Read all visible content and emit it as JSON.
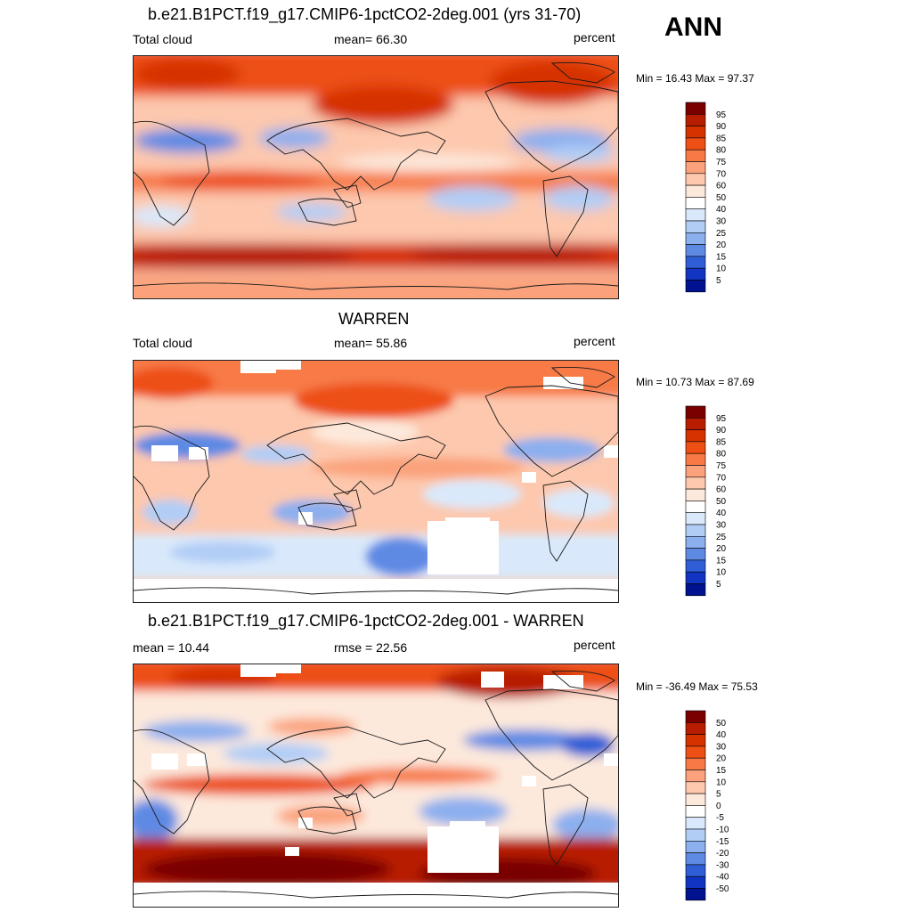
{
  "season": "ANN",
  "panels": [
    {
      "title": "b.e21.B1PCT.f19_g17.CMIP6-1pctCO2-2deg.001 (yrs 31-70)",
      "left_label": "Total cloud",
      "center_label": "mean=  66.30",
      "right_label": "percent",
      "minmax": "Min =  16.43 Max =  97.37",
      "colorbar": {
        "labels": [
          "95",
          "90",
          "85",
          "80",
          "75",
          "70",
          "60",
          "50",
          "40",
          "30",
          "25",
          "20",
          "15",
          "10",
          "5"
        ],
        "colors": [
          "#7a0000",
          "#b81d00",
          "#d63200",
          "#ed4f15",
          "#f77a46",
          "#fba27c",
          "#fdc8ad",
          "#fde9dc",
          "#ffffff",
          "#d9e9fb",
          "#b1cdf6",
          "#8cafee",
          "#5e8ae4",
          "#2f5ed6",
          "#1134c2",
          "#00128f"
        ]
      }
    },
    {
      "title": "WARREN",
      "left_label": "Total cloud",
      "center_label": "mean=  55.86",
      "right_label": "percent",
      "minmax": "Min =  10.73 Max =  87.69",
      "colorbar": {
        "labels": [
          "95",
          "90",
          "85",
          "80",
          "75",
          "70",
          "60",
          "50",
          "40",
          "30",
          "25",
          "20",
          "15",
          "10",
          "5"
        ],
        "colors": [
          "#7a0000",
          "#b81d00",
          "#d63200",
          "#ed4f15",
          "#f77a46",
          "#fba27c",
          "#fdc8ad",
          "#fde9dc",
          "#ffffff",
          "#d9e9fb",
          "#b1cdf6",
          "#8cafee",
          "#5e8ae4",
          "#2f5ed6",
          "#1134c2",
          "#00128f"
        ]
      }
    },
    {
      "title": "b.e21.B1PCT.f19_g17.CMIP6-1pctCO2-2deg.001 - WARREN",
      "left_label": "mean =  10.44",
      "center_label": "rmse =  22.56",
      "right_label": "percent",
      "minmax": "Min = -36.49 Max =  75.53",
      "colorbar": {
        "labels": [
          "50",
          "40",
          "30",
          "20",
          "15",
          "10",
          "5",
          "0",
          "-5",
          "-10",
          "-15",
          "-20",
          "-30",
          "-40",
          "-50"
        ],
        "colors": [
          "#7a0000",
          "#b81d00",
          "#d63200",
          "#ed4f15",
          "#f77a46",
          "#fba27c",
          "#fdc8ad",
          "#fde9dc",
          "#ffffff",
          "#d9e9fb",
          "#b1cdf6",
          "#8cafee",
          "#5e8ae4",
          "#2f5ed6",
          "#1134c2",
          "#00128f"
        ]
      }
    }
  ]
}
